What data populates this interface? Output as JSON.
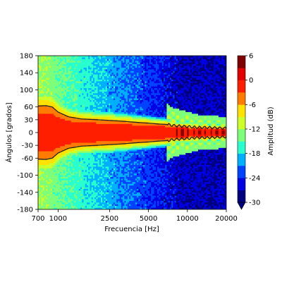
{
  "chart_data": {
    "type": "heatmap",
    "title": "",
    "xlabel": "Frecuencia [Hz]",
    "ylabel": "Ángulos [grados]",
    "x_scale": "log",
    "xlim": [
      700,
      20000
    ],
    "ylim": [
      -180,
      180
    ],
    "x_ticks": [
      700,
      1000,
      2500,
      5000,
      10000,
      20000
    ],
    "x_tick_labels": [
      "700",
      "1000",
      "2500",
      "5000",
      "10000",
      "20000"
    ],
    "y_ticks": [
      180,
      140,
      100,
      60,
      30,
      0,
      -30,
      -60,
      -100,
      -140,
      -180
    ],
    "y_tick_labels": [
      "180",
      "140",
      "100",
      "60",
      "30",
      "0",
      "-30",
      "-60",
      "-100",
      "-140",
      "-180"
    ],
    "colorbar": {
      "label": "Amplitud (dB)",
      "colormap": "jet",
      "min": -30,
      "max": 6,
      "levels": [
        -30,
        -27,
        -24,
        -21,
        -18,
        -15,
        -12,
        -9,
        -6,
        -3,
        0,
        3,
        6
      ],
      "ticks": [
        6,
        0,
        -6,
        -12,
        -18,
        -24,
        -30
      ],
      "tick_labels": [
        "6",
        "0",
        "-6",
        "-12",
        "-18",
        "-24",
        "-30"
      ],
      "extend": "min",
      "colors": [
        "#00007f",
        "#0000e3",
        "#0043ff",
        "#00b0ff",
        "#29ffce",
        "#7dff7a",
        "#cdff29",
        "#ffe200",
        "#ff7c00",
        "#ff1e00",
        "#e30000",
        "#7f0000"
      ]
    },
    "contour": {
      "level_db": -6,
      "color": "#222222"
    },
    "beamwidth_contour": [
      {
        "freq": 700,
        "angle": 62
      },
      {
        "freq": 800,
        "angle": 63
      },
      {
        "freq": 900,
        "angle": 60
      },
      {
        "freq": 1000,
        "angle": 48
      },
      {
        "freq": 1200,
        "angle": 37
      },
      {
        "freq": 1500,
        "angle": 32
      },
      {
        "freq": 2000,
        "angle": 30
      },
      {
        "freq": 3000,
        "angle": 27
      },
      {
        "freq": 4000,
        "angle": 24
      },
      {
        "freq": 5000,
        "angle": 22
      },
      {
        "freq": 6000,
        "angle": 20
      },
      {
        "freq": 7000,
        "angle": 19
      },
      {
        "freq": 8000,
        "angle": 16
      },
      {
        "freq": 9000,
        "angle": 15
      },
      {
        "freq": 10000,
        "angle": 14
      },
      {
        "freq": 12000,
        "angle": 12
      },
      {
        "freq": 14000,
        "angle": 12
      },
      {
        "freq": 17000,
        "angle": 11
      },
      {
        "freq": 20000,
        "angle": 10
      }
    ],
    "beam_shape": {
      "main_lobe_exponent": 2.2,
      "sidelobe_level_db": -13,
      "rear_level_low_freq_db": -12,
      "rear_level_high_freq_db": -27
    }
  }
}
